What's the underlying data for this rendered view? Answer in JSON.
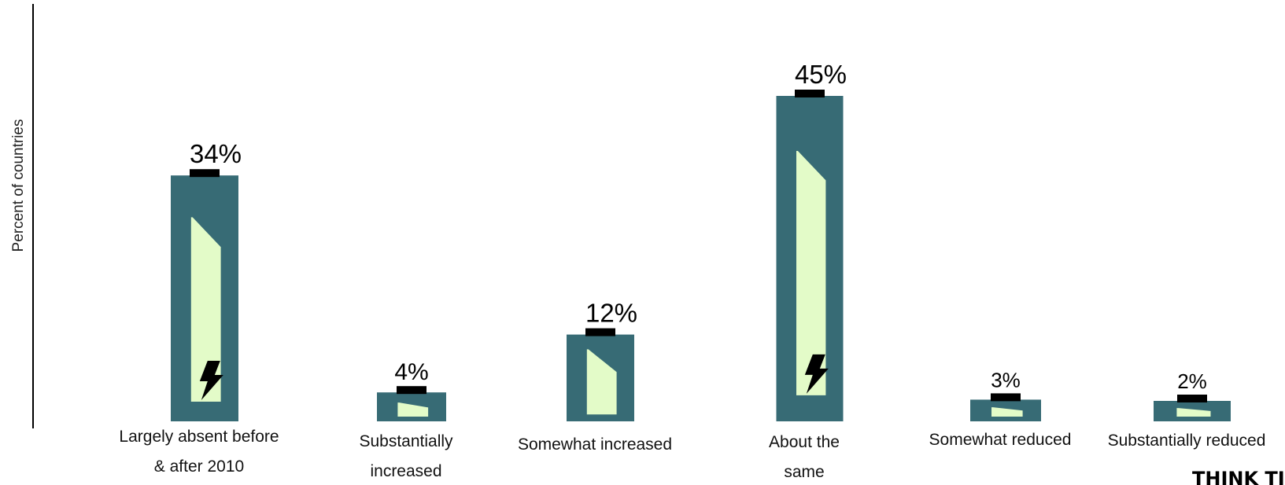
{
  "chart_data": {
    "type": "bar",
    "title": "",
    "xlabel": "",
    "ylabel": "Percent of countries",
    "ylim": [
      0,
      50
    ],
    "grid": false,
    "legend": "none",
    "categories": [
      [
        "Largely absent before",
        "& after 2010"
      ],
      [
        "Substantially",
        "increased"
      ],
      [
        "Somewhat increased"
      ],
      [
        "About the",
        "same"
      ],
      [
        "Somewhat reduced"
      ],
      [
        "Substantially reduced"
      ]
    ],
    "values": [
      34,
      4,
      12,
      45,
      3,
      2
    ],
    "value_labels": [
      "34%",
      "4%",
      "12%",
      "45%",
      "3%",
      "2%"
    ],
    "bolt_icon_on": [
      true,
      false,
      false,
      true,
      false,
      false
    ]
  },
  "colors": {
    "bar": "#376b75",
    "inner": "#e3fbc8",
    "terminal": "#000000",
    "axis": "#000000"
  },
  "icons": {
    "bolt": "lightning-bolt-icon"
  },
  "brand_text": "THINK TI"
}
